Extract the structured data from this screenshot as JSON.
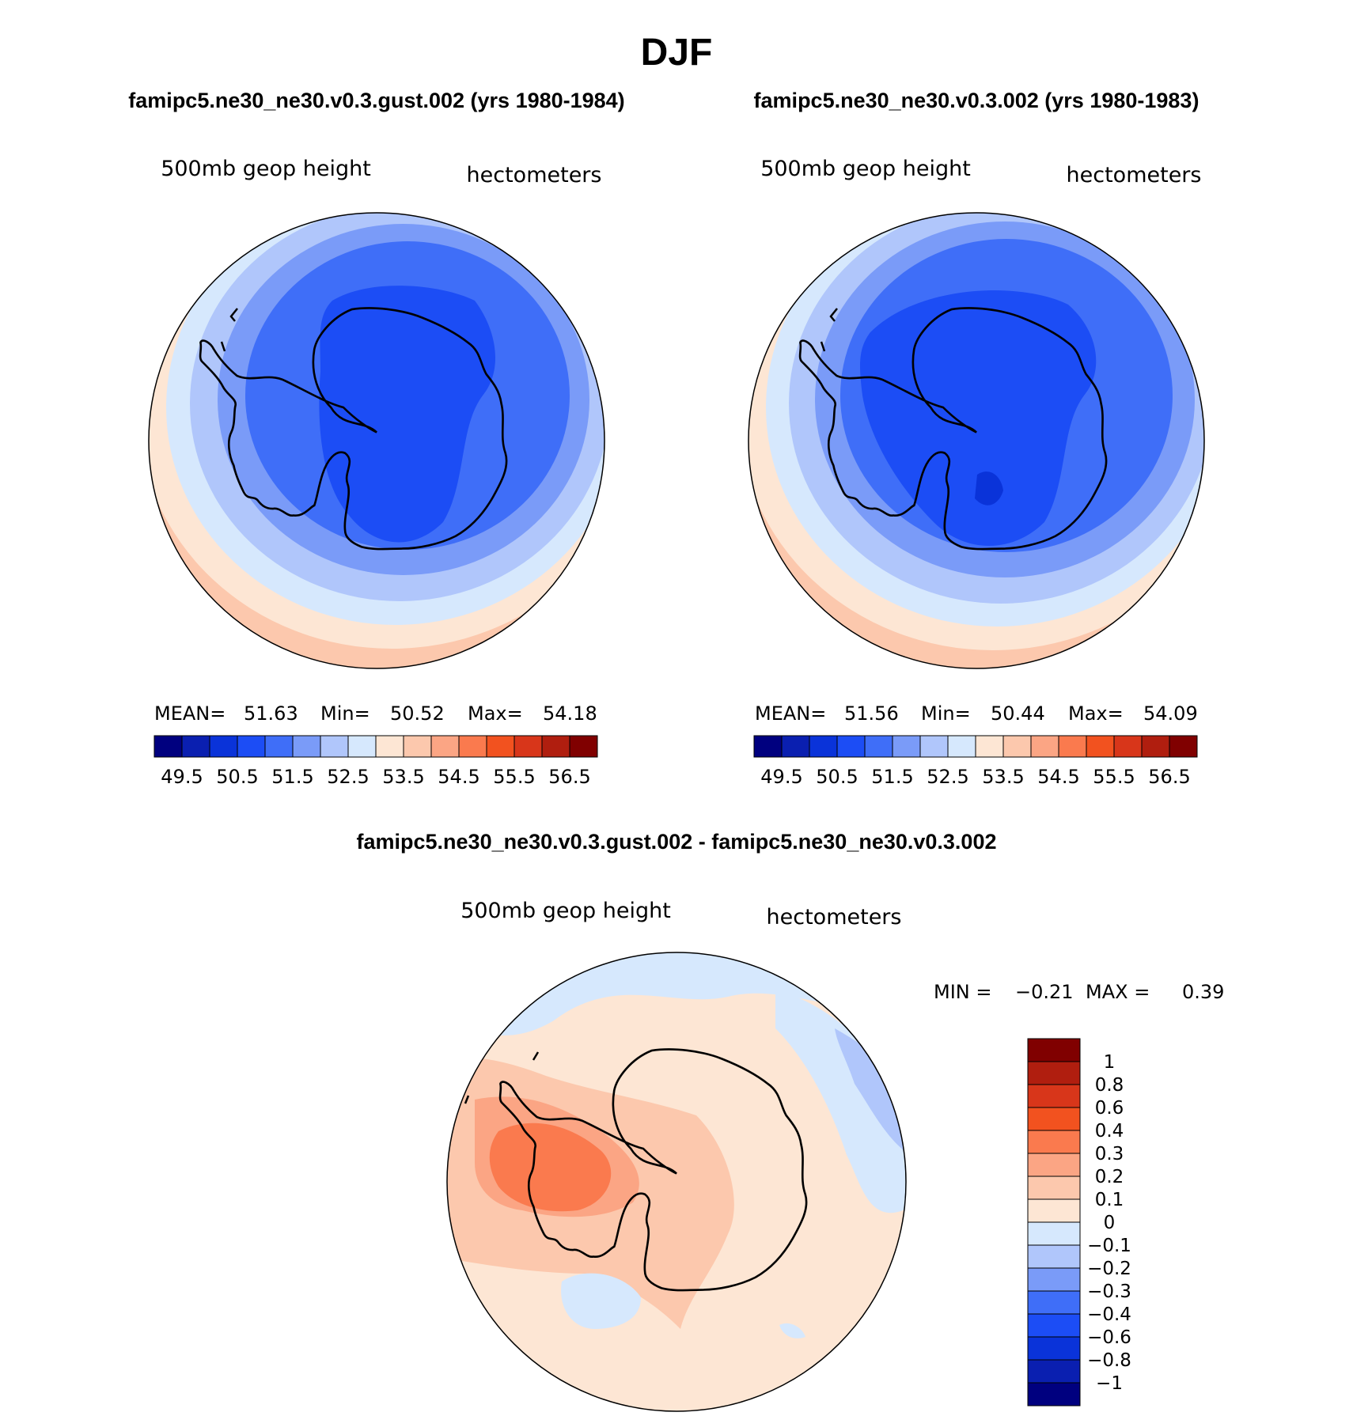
{
  "title": "DJF",
  "panels": [
    {
      "header": "famipc5.ne30_ne30.v0.3.gust.002 (yrs 1980-1984)",
      "left_label": "500mb geop height",
      "right_label": "hectometers",
      "stats": {
        "mean_label": "MEAN=",
        "mean": "51.63",
        "min_label": "Min=",
        "min": "50.52",
        "max_label": "Max=",
        "max": "54.18"
      }
    },
    {
      "header": "famipc5.ne30_ne30.v0.3.002 (yrs 1980-1983)",
      "left_label": "500mb geop height",
      "right_label": "hectometers",
      "stats": {
        "mean_label": "MEAN=",
        "mean": "51.56",
        "min_label": "Min=",
        "min": "50.44",
        "max_label": "Max=",
        "max": "54.09"
      }
    }
  ],
  "diff_panel": {
    "header": "famipc5.ne30_ne30.v0.3.gust.002 - famipc5.ne30_ne30.v0.3.002",
    "left_label": "500mb geop height",
    "right_label": "hectometers",
    "stats": {
      "min_label": "MIN =",
      "min": "−0.21",
      "max_label": "MAX =",
      "max": "0.39"
    }
  },
  "chart_data": [
    {
      "type": "heatmap",
      "title": "famipc5.ne30_ne30.v0.3.gust.002 (yrs 1980-1984)",
      "variable": "500mb geop height",
      "units": "hectometers",
      "projection": "south-polar stereographic",
      "mean": 51.63,
      "min": 50.52,
      "max": 54.18,
      "colorbar_levels": [
        49.5,
        50.5,
        51.5,
        52.5,
        53.5,
        54.5,
        55.5,
        56.5
      ],
      "colorbar_tick_labels": [
        "49.5",
        "50.5",
        "51.5",
        "52.5",
        "53.5",
        "54.5",
        "55.5",
        "56.5"
      ]
    },
    {
      "type": "heatmap",
      "title": "famipc5.ne30_ne30.v0.3.002 (yrs 1980-1983)",
      "variable": "500mb geop height",
      "units": "hectometers",
      "projection": "south-polar stereographic",
      "mean": 51.56,
      "min": 50.44,
      "max": 54.09,
      "colorbar_levels": [
        49.5,
        50.5,
        51.5,
        52.5,
        53.5,
        54.5,
        55.5,
        56.5
      ],
      "colorbar_tick_labels": [
        "49.5",
        "50.5",
        "51.5",
        "52.5",
        "53.5",
        "54.5",
        "55.5",
        "56.5"
      ]
    },
    {
      "type": "heatmap",
      "title": "famipc5.ne30_ne30.v0.3.gust.002 - famipc5.ne30_ne30.v0.3.002",
      "variable": "500mb geop height",
      "units": "hectometers",
      "projection": "south-polar stereographic",
      "min": -0.21,
      "max": 0.39,
      "colorbar_levels": [
        1,
        0.8,
        0.6,
        0.4,
        0.3,
        0.2,
        0.1,
        0,
        -0.1,
        -0.2,
        -0.3,
        -0.4,
        -0.6,
        -0.8,
        -1
      ],
      "colorbar_tick_labels": [
        "1",
        "0.8",
        "0.6",
        "0.4",
        "0.3",
        "0.2",
        "0.1",
        "0",
        "−0.1",
        "−0.2",
        "−0.3",
        "−0.4",
        "−0.6",
        "−0.8",
        "−1"
      ]
    }
  ],
  "colors": {
    "abs_scale": [
      "#00007f",
      "#0a1fb0",
      "#0a33d9",
      "#1c4df5",
      "#3f6ef8",
      "#7a9bf8",
      "#b0c6fb",
      "#d6e8fd",
      "#fde6d4",
      "#fcc8ad",
      "#fba584",
      "#fa7a4e",
      "#f2521f",
      "#d8361a",
      "#b01e0f",
      "#800000"
    ],
    "diff_scale": [
      "#800000",
      "#b01e0f",
      "#d8361a",
      "#f2521f",
      "#fa7a4e",
      "#fba584",
      "#fcc8ad",
      "#fde6d4",
      "#d6e8fd",
      "#b0c6fb",
      "#7a9bf8",
      "#3f6ef8",
      "#1c4df5",
      "#0a33d9",
      "#0a1fb0",
      "#00007f"
    ]
  }
}
